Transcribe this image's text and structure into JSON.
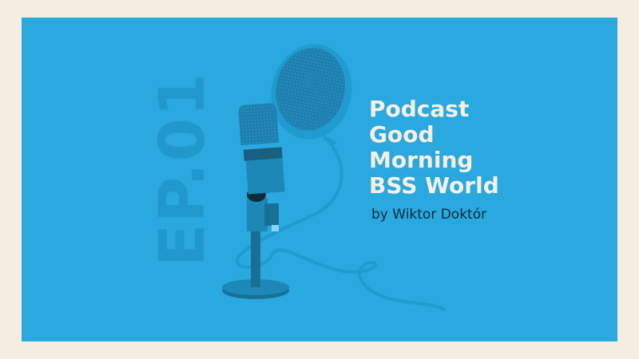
{
  "episode_label": "EP.01",
  "title_lines": [
    "Podcast",
    "Good",
    "Morning",
    "BSS World"
  ],
  "byline": "by Wiktor Doktór",
  "colors": {
    "background": "#f5eee0",
    "panel": "#29a9e0",
    "title": "#f7f0e2",
    "byline": "#0e2a3d",
    "mic_dark": "#1a6f96"
  },
  "illustration": "microphone-with-pop-filter"
}
